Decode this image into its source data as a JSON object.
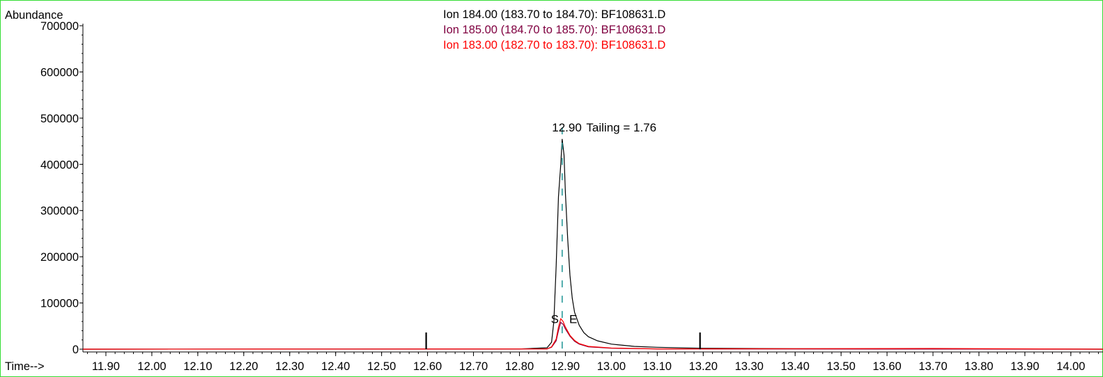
{
  "chart_data": {
    "type": "line",
    "ylabel": "Abundance",
    "xlabel": "Time-->",
    "xlim": [
      11.85,
      14.07
    ],
    "ylim": [
      0,
      700000
    ],
    "x_ticks": [
      "11.90",
      "12.00",
      "12.10",
      "12.20",
      "12.30",
      "12.40",
      "12.50",
      "12.60",
      "12.70",
      "12.80",
      "12.90",
      "13.00",
      "13.10",
      "13.20",
      "13.30",
      "13.40",
      "13.50",
      "13.60",
      "13.70",
      "13.80",
      "13.90",
      "14.00"
    ],
    "x_tick_values": [
      11.9,
      12.0,
      12.1,
      12.2,
      12.3,
      12.4,
      12.5,
      12.6,
      12.7,
      12.8,
      12.9,
      13.0,
      13.1,
      13.2,
      13.3,
      13.4,
      13.5,
      13.6,
      13.7,
      13.8,
      13.9,
      14.0
    ],
    "y_ticks": [
      "0",
      "100000",
      "200000",
      "300000",
      "400000",
      "500000",
      "600000",
      "700000"
    ],
    "y_tick_values": [
      0,
      100000,
      200000,
      300000,
      400000,
      500000,
      600000,
      700000
    ],
    "legend": [
      {
        "text": "Ion 184.00 (183.70 to 184.70): BF108631.D",
        "color": "#000000"
      },
      {
        "text": "Ion 185.00 (184.70 to 185.70): BF108631.D",
        "color": "#800040"
      },
      {
        "text": "Ion 183.00 (182.70 to 183.70): BF108631.D",
        "color": "#ff0000"
      }
    ],
    "series": [
      {
        "name": "Ion 184.00 (183.70 to 184.70): BF108631.D",
        "color": "#000000",
        "x": [
          11.85,
          12.8,
          12.86,
          12.87,
          12.875,
          12.88,
          12.885,
          12.89,
          12.893,
          12.897,
          12.9,
          12.905,
          12.91,
          12.915,
          12.92,
          12.93,
          12.94,
          12.95,
          12.97,
          13.0,
          13.05,
          13.1,
          13.2,
          13.4,
          14.07
        ],
        "y": [
          0,
          500,
          3000,
          15000,
          60000,
          180000,
          330000,
          400000,
          455000,
          420000,
          340000,
          240000,
          160000,
          110000,
          80000,
          52000,
          36000,
          27000,
          18000,
          11000,
          6000,
          4000,
          2000,
          1000,
          0
        ]
      },
      {
        "name": "Ion 185.00 (184.70 to 185.70): BF108631.D",
        "color": "#800040",
        "x": [
          11.85,
          12.86,
          12.87,
          12.88,
          12.885,
          12.89,
          12.895,
          12.9,
          12.91,
          12.92,
          12.93,
          12.95,
          13.0,
          13.1,
          14.07
        ],
        "y": [
          0,
          500,
          4000,
          18000,
          40000,
          58000,
          54000,
          44000,
          28000,
          17000,
          11000,
          5000,
          2000,
          500,
          0
        ]
      },
      {
        "name": "Ion 183.00 (182.70 to 183.70): BF108631.D",
        "color": "#ff0000",
        "x": [
          11.85,
          12.86,
          12.87,
          12.88,
          12.885,
          12.89,
          12.895,
          12.9,
          12.91,
          12.92,
          12.93,
          12.95,
          13.0,
          13.1,
          13.7,
          14.07
        ],
        "y": [
          0,
          500,
          5000,
          22000,
          48000,
          66000,
          60000,
          48000,
          30000,
          19000,
          12000,
          6000,
          2500,
          600,
          1500,
          0
        ]
      }
    ],
    "peak_marker": {
      "x": 12.893,
      "color": "#2a9a9a"
    },
    "integration_ticks": [
      12.597,
      13.193
    ],
    "annotations": [
      {
        "text": "12.90",
        "x": 12.893,
        "y": 470000
      },
      {
        "text": "Tailing =  1.76",
        "x": 12.9,
        "y": 470000
      },
      {
        "text": "S",
        "x": 12.877,
        "y": 55000
      },
      {
        "text": "E",
        "x": 12.905,
        "y": 55000
      }
    ]
  }
}
